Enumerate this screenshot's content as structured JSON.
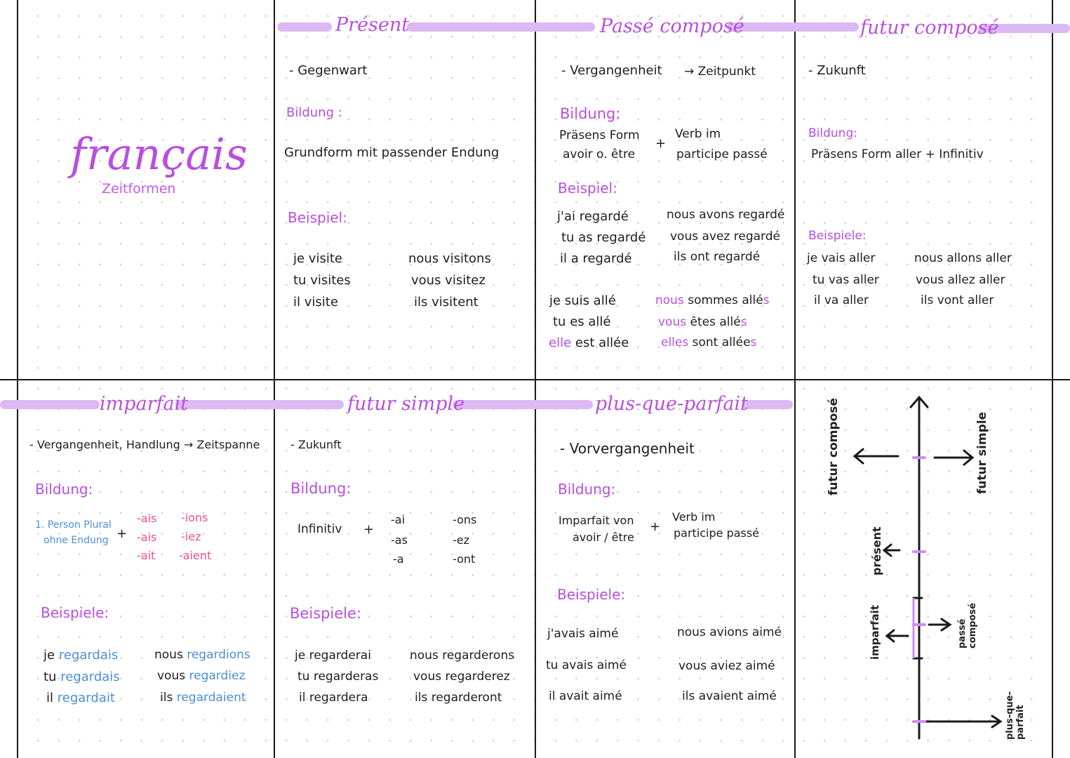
{
  "cover": {
    "title": "français",
    "subtitle": "Zeitformen"
  },
  "present": {
    "title": "Présent",
    "meaning": "- Gegenwart",
    "bildung_label": "Bildung :",
    "bildung_text": "Grundform mit passender Endung",
    "beispiel_label": "Beispiel:",
    "examples": [
      "je visite",
      "tu visites",
      "il visite",
      "nous visitons",
      "vous visitez",
      "ils visitent"
    ]
  },
  "passe_compose": {
    "title": "Passé composé",
    "meaning": "- Vergangenheit",
    "arrow_note": "→ Zeitpunkt",
    "bildung_label": "Bildung:",
    "bildung_left": [
      "Präsens Form",
      "avoir o. être"
    ],
    "plus": "+",
    "bildung_right": [
      "Verb im",
      "participe passé"
    ],
    "beispiel_label": "Beispiel:",
    "avoir_examples": [
      "j'ai regardé",
      "tu as regardé",
      "il a regardé",
      "nous avons regardé",
      "vous avez regardé",
      "ils ont regardé"
    ],
    "etre_examples": [
      "je suis allé",
      "tu es allé",
      "elle est allée"
    ],
    "etre_plural": [
      {
        "pronoun": "nous",
        "verb": "sommes",
        "participle": "allé",
        "ending": "s"
      },
      {
        "pronoun": "vous",
        "verb": "êtes",
        "participle": "allé",
        "ending": "s"
      },
      {
        "pronoun": "elles",
        "verb": "sont",
        "participle": "allée",
        "ending": "s"
      }
    ],
    "elle_pronoun": "elle",
    "elle_rest": "est allée"
  },
  "futur_compose": {
    "title": "futur composé",
    "meaning": "- Zukunft",
    "bildung_label": "Bildung:",
    "bildung_text": "Präsens Form aller + Infinitiv",
    "beispiel_label": "Beispiele:",
    "examples": [
      "je vais aller",
      "tu vas aller",
      "il va aller",
      "nous allons aller",
      "vous allez aller",
      "ils vont aller"
    ]
  },
  "imparfait": {
    "title": "imparfait",
    "meaning": "- Vergangenheit, Handlung → Zeitspanne",
    "bildung_label": "Bildung:",
    "bildung_left": [
      "1. Person Plural",
      "ohne Endung"
    ],
    "plus": "+",
    "endings_sg": [
      "-ais",
      "-ais",
      "-ait"
    ],
    "endings_pl": [
      "-ions",
      "-iez",
      "-aient"
    ],
    "beispiel_label": "Beispiele:",
    "pronouns_sg": [
      "je",
      "tu",
      "il"
    ],
    "verbs_sg": [
      "regardais",
      "regardais",
      "regardait"
    ],
    "pronouns_pl": [
      "nous",
      "vous",
      "ils"
    ],
    "verbs_pl": [
      "regardions",
      "regardiez",
      "regardaient"
    ]
  },
  "futur_simple": {
    "title": "futur simple",
    "meaning": "- Zukunft",
    "bildung_label": "Bildung:",
    "bildung_text": "Infinitiv",
    "plus": "+",
    "endings_sg": [
      "-ai",
      "-as",
      "-a"
    ],
    "endings_pl": [
      "-ons",
      "-ez",
      "-ont"
    ],
    "beispiel_label": "Beispiele:",
    "examples": [
      "je regarderai",
      "tu regarderas",
      "il regardera",
      "nous regarderons",
      "vous regarderez",
      "ils regarderont"
    ]
  },
  "plus_que_parfait": {
    "title": "plus-que-parfait",
    "meaning": "- Vorvergangenheit",
    "bildung_label": "Bildung:",
    "bildung_left": [
      "Imparfait von",
      "avoir / être"
    ],
    "plus": "+",
    "bildung_right": [
      "Verb im",
      "participe passé"
    ],
    "beispiel_label": "Beispiele:",
    "examples": [
      "j'avais aimé",
      "tu avais aimé",
      "il avait aimé",
      "nous avions aimé",
      "vous aviez aimé",
      "ils avaient aimé"
    ]
  },
  "timeline": {
    "labels": [
      "futur composé",
      "futur simple",
      "présent",
      "imparfait",
      "passé composé",
      "plus-que-parfait"
    ]
  },
  "colors": {
    "accent": "#b84fe0",
    "bar": "#dcb9f2",
    "blue": "#4c8fd8",
    "rose": "#ee4f8f"
  }
}
